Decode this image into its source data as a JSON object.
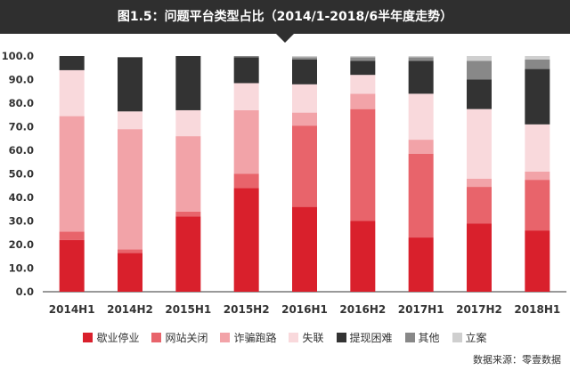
{
  "header": {
    "title": "图1.5：问题平台类型占比（2014/1-2018/6半年度走势）"
  },
  "chart_data": {
    "type": "bar",
    "stacked": true,
    "title": "图1.5：问题平台类型占比（2014/1-2018/6半年度走势）",
    "xlabel": "",
    "ylabel": "",
    "ylim": [
      0,
      100
    ],
    "yticks": [
      "0.0",
      "10.0",
      "20.0",
      "30.0",
      "40.0",
      "50.0",
      "60.0",
      "70.0",
      "80.0",
      "90.0",
      "100.0"
    ],
    "grid": false,
    "legend_position": "bottom",
    "categories": [
      "2014H1",
      "2014H2",
      "2015H1",
      "2015H2",
      "2016H1",
      "2016H2",
      "2017H1",
      "2017H2",
      "2018H1"
    ],
    "series": [
      {
        "name": "歇业停业",
        "color": "#d9202c",
        "values": [
          22,
          16.5,
          32,
          44,
          36,
          30,
          23,
          29,
          26
        ]
      },
      {
        "name": "网站关闭",
        "color": "#e8646b",
        "values": [
          3.5,
          1.5,
          2,
          6,
          34.5,
          47.5,
          35.5,
          15.5,
          21.5
        ]
      },
      {
        "name": "诈骗跑路",
        "color": "#f2a3a8",
        "values": [
          49,
          51,
          32,
          27,
          5.5,
          6.5,
          6,
          3.5,
          3.5
        ]
      },
      {
        "name": "失联",
        "color": "#f9d9dc",
        "values": [
          19.5,
          7.5,
          11,
          11.5,
          12,
          8,
          19.5,
          29.5,
          20
        ]
      },
      {
        "name": "提现困难",
        "color": "#333333",
        "values": [
          6,
          23,
          23,
          11,
          10.5,
          6,
          14,
          12.5,
          23.5
        ]
      },
      {
        "name": "其他",
        "color": "#888888",
        "values": [
          0,
          0,
          0,
          0.5,
          1,
          1.5,
          1.5,
          8,
          4
        ]
      },
      {
        "name": "立案",
        "color": "#cfcfcf",
        "values": [
          0,
          0,
          0,
          0,
          0.5,
          0.5,
          0.5,
          2,
          1.5
        ]
      }
    ]
  },
  "footer": {
    "source": "数据来源：零壹数据"
  }
}
